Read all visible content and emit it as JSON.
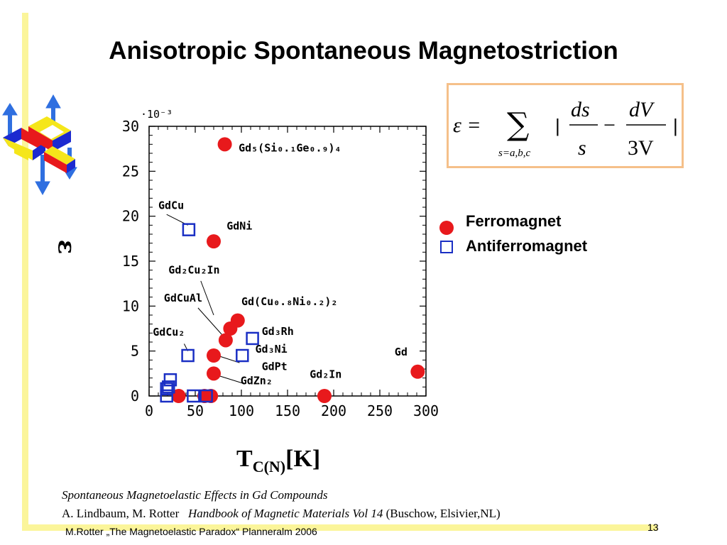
{
  "slide": {
    "title": "Anisotropic Spontaneous Magnetostriction",
    "axis_x_main": "T",
    "axis_x_sub": "C(N)",
    "axis_x_unit": "[K]",
    "axis_y_symbol": "ε",
    "reference_line1": "Spontaneous Magnetoelastic Effects in Gd Compounds",
    "reference_authors": "A. Lindbaum, M. Rotter",
    "reference_book": "Handbook of Magnetic Materials Vol 14",
    "reference_publisher": "(Buschow, Elsivier,NL)",
    "footer": "M.Rotter „The Magnetoelastic Paradox“ Planneralm 2006",
    "page_number": "13"
  },
  "formula": {
    "lhs": "ε =",
    "sum_symbol": "∑",
    "sum_subscript": "s=a,b,c",
    "bar": "|",
    "frac1_num": "ds",
    "frac1_den": "s",
    "minus": "−",
    "frac2_num": "dV",
    "frac2_den": "3V"
  },
  "legend": {
    "ferro": "Ferromagnet",
    "antiferro": "Antiferromagnet"
  },
  "colors": {
    "ferro": "#e8191c",
    "antiferro": "#1a2fc4",
    "highlight_bar": "#fbf59a",
    "formula_border": "#f5c08a"
  },
  "chart_data": {
    "type": "scatter",
    "xlim": [
      0,
      300
    ],
    "ylim": [
      0,
      30
    ],
    "x_ticks": [
      "0",
      "50",
      "100",
      "150",
      "200",
      "250",
      "300"
    ],
    "y_ticks": [
      "0",
      "5",
      "10",
      "15",
      "20",
      "25",
      "30"
    ],
    "y_scale_label": "·10⁻³",
    "grid": false,
    "series": [
      {
        "name": "Ferromagnet",
        "marker": "filled-circle",
        "points": [
          {
            "x": 82,
            "y": 28.0
          },
          {
            "x": 70,
            "y": 17.2
          },
          {
            "x": 96,
            "y": 8.4
          },
          {
            "x": 88,
            "y": 7.5
          },
          {
            "x": 83,
            "y": 6.2
          },
          {
            "x": 70,
            "y": 4.5
          },
          {
            "x": 70,
            "y": 2.5
          },
          {
            "x": 291,
            "y": 2.7
          },
          {
            "x": 190,
            "y": 0.0
          },
          {
            "x": 32,
            "y": 0.0
          },
          {
            "x": 60,
            "y": 0.0
          },
          {
            "x": 67,
            "y": 0.0
          }
        ]
      },
      {
        "name": "Antiferromagnet",
        "marker": "open-square",
        "points": [
          {
            "x": 43,
            "y": 18.5
          },
          {
            "x": 112,
            "y": 6.4
          },
          {
            "x": 42,
            "y": 4.5
          },
          {
            "x": 101,
            "y": 4.5
          },
          {
            "x": 23,
            "y": 1.8
          },
          {
            "x": 21,
            "y": 1.0
          },
          {
            "x": 19,
            "y": 0.8
          },
          {
            "x": 19,
            "y": 0.0
          },
          {
            "x": 48,
            "y": 0.0
          },
          {
            "x": 62,
            "y": 0.0
          }
        ]
      }
    ],
    "annotations": [
      {
        "text": "Gd₅(Si₀.₁Ge₀.₉)₄",
        "x": 97,
        "y": 27.2
      },
      {
        "text": "GdCu",
        "x": 10,
        "y": 20.8
      },
      {
        "text": "GdNi",
        "x": 84,
        "y": 18.5
      },
      {
        "text": "Gd₂Cu₂In",
        "x": 21,
        "y": 13.6
      },
      {
        "text": "GdCuAl",
        "x": 16,
        "y": 10.5
      },
      {
        "text": "Gd(Cu₀.₈Ni₀.₂)₂",
        "x": 100,
        "y": 10.1
      },
      {
        "text": "GdCu₂",
        "x": 4,
        "y": 6.7
      },
      {
        "text": "Gd₃Rh",
        "x": 122,
        "y": 6.8
      },
      {
        "text": "Gd₃Ni",
        "x": 115,
        "y": 4.8
      },
      {
        "text": "GdPt",
        "x": 122,
        "y": 2.9
      },
      {
        "text": "GdZn₂",
        "x": 99,
        "y": 1.3
      },
      {
        "text": "Gd₂In",
        "x": 174,
        "y": 2.0
      },
      {
        "text": "Gd",
        "x": 266,
        "y": 4.5
      }
    ]
  }
}
